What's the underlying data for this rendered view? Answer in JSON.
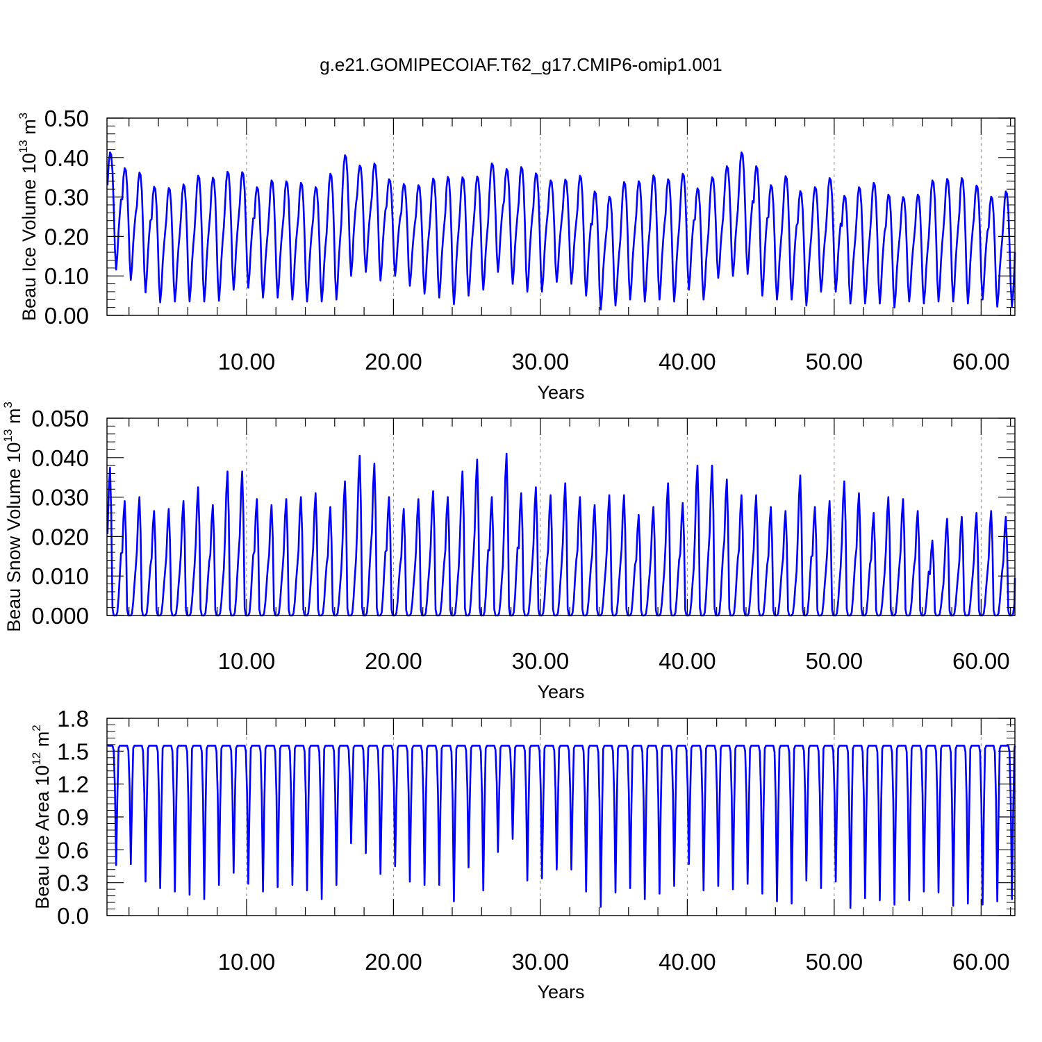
{
  "title": "g.e21.GOMIPECOIAF.T62_g17.CMIP6-omip1.001",
  "style": {
    "line_color": "#0000ff",
    "axis_color": "#000000",
    "grid_color": "#888888"
  },
  "chart_data": [
    {
      "type": "line",
      "xlabel": "Years",
      "ylabel": "Beau Ice Volume 10",
      "ylabel_exp": "13",
      "ylabel_unit": " m",
      "ylabel_unit_exp": "3",
      "xlim": [
        0.5,
        62.3
      ],
      "ylim": [
        0.0,
        0.5
      ],
      "yticks": [
        "0.00",
        "0.10",
        "0.20",
        "0.30",
        "0.40",
        "0.50"
      ],
      "xticks": [
        "10.00",
        "20.00",
        "30.00",
        "40.00",
        "50.00",
        "60.00"
      ],
      "xtick_values": [
        10,
        20,
        30,
        40,
        50,
        60
      ],
      "grid": "vertical dashed at major x ticks",
      "legend": "none",
      "series": [
        {
          "start_year": 0.54,
          "step_years": 0.0833,
          "annual_max": [
            0.413,
            0.373,
            0.362,
            0.326,
            0.323,
            0.332,
            0.354,
            0.349,
            0.364,
            0.363,
            0.325,
            0.342,
            0.34,
            0.336,
            0.325,
            0.359,
            0.406,
            0.38,
            0.385,
            0.345,
            0.333,
            0.33,
            0.347,
            0.351,
            0.35,
            0.352,
            0.385,
            0.371,
            0.376,
            0.36,
            0.342,
            0.344,
            0.354,
            0.314,
            0.301,
            0.338,
            0.34,
            0.355,
            0.345,
            0.359,
            0.322,
            0.35,
            0.378,
            0.413,
            0.378,
            0.33,
            0.353,
            0.315,
            0.325,
            0.348,
            0.303,
            0.325,
            0.336,
            0.306,
            0.3,
            0.306,
            0.342,
            0.346,
            0.348,
            0.329,
            0.301,
            0.314
          ],
          "annual_min": [
            0.116,
            0.09,
            0.058,
            0.033,
            0.035,
            0.035,
            0.035,
            0.037,
            0.065,
            0.07,
            0.045,
            0.045,
            0.04,
            0.035,
            0.035,
            0.04,
            0.1,
            0.11,
            0.088,
            0.1,
            0.075,
            0.055,
            0.045,
            0.028,
            0.05,
            0.065,
            0.11,
            0.08,
            0.06,
            0.06,
            0.085,
            0.08,
            0.05,
            0.015,
            0.025,
            0.04,
            0.035,
            0.04,
            0.035,
            0.065,
            0.04,
            0.095,
            0.1,
            0.105,
            0.05,
            0.04,
            0.04,
            0.025,
            0.06,
            0.06,
            0.03,
            0.03,
            0.03,
            0.02,
            0.035,
            0.03,
            0.035,
            0.035,
            0.03,
            0.04,
            0.022,
            0.022
          ],
          "end_value": 0.16
        }
      ]
    },
    {
      "type": "line",
      "xlabel": "Years",
      "ylabel": "Beau Snow Volume 10",
      "ylabel_exp": "13",
      "ylabel_unit": " m",
      "ylabel_unit_exp": "3",
      "xlim": [
        0.5,
        62.3
      ],
      "ylim": [
        0.0,
        0.05
      ],
      "yticks": [
        "0.000",
        "0.010",
        "0.020",
        "0.030",
        "0.040",
        "0.050"
      ],
      "xticks": [
        "10.00",
        "20.00",
        "30.00",
        "40.00",
        "50.00",
        "60.00"
      ],
      "xtick_values": [
        10,
        20,
        30,
        40,
        50,
        60
      ],
      "grid": "vertical dashed at major x ticks",
      "legend": "none",
      "series": [
        {
          "start_year": 0.54,
          "step_years": 0.0833,
          "annual_max": [
            0.0375,
            0.029,
            0.03,
            0.0265,
            0.027,
            0.029,
            0.0325,
            0.028,
            0.0365,
            0.0365,
            0.0295,
            0.028,
            0.0295,
            0.03,
            0.031,
            0.0275,
            0.034,
            0.0405,
            0.0385,
            0.03,
            0.027,
            0.0295,
            0.0315,
            0.03,
            0.0365,
            0.0395,
            0.03,
            0.041,
            0.031,
            0.0325,
            0.0305,
            0.0335,
            0.03,
            0.028,
            0.0305,
            0.0305,
            0.0255,
            0.0275,
            0.0335,
            0.0285,
            0.038,
            0.038,
            0.0345,
            0.0305,
            0.0305,
            0.0275,
            0.0265,
            0.0355,
            0.0275,
            0.029,
            0.034,
            0.031,
            0.026,
            0.03,
            0.0295,
            0.0265,
            0.019,
            0.0245,
            0.025,
            0.026,
            0.0265,
            0.025
          ],
          "annual_min": [
            0.0,
            0.0,
            0.0,
            0.0,
            0.0,
            0.0,
            0.0,
            0.0,
            0.0,
            0.0,
            0.0,
            0.0,
            0.0,
            0.0,
            0.0,
            0.0,
            0.0,
            0.0,
            0.0,
            0.0,
            0.0,
            0.0,
            0.0,
            0.0,
            0.0,
            0.0,
            0.0,
            0.0,
            0.0,
            0.0,
            0.0,
            0.0,
            0.0,
            0.0,
            0.0,
            0.0,
            0.0,
            0.0,
            0.0,
            0.0,
            0.0,
            0.0,
            0.0,
            0.0,
            0.0,
            0.0,
            0.0,
            0.0,
            0.0,
            0.0,
            0.0,
            0.0,
            0.0,
            0.0,
            0.0,
            0.0,
            0.0,
            0.0,
            0.0,
            0.0,
            0.0,
            0.0
          ],
          "end_value": 0.0095
        }
      ]
    },
    {
      "type": "line",
      "xlabel": "Years",
      "ylabel": "Beau Ice Area 10",
      "ylabel_exp": "12",
      "ylabel_unit": " m",
      "ylabel_unit_exp": "2",
      "xlim": [
        0.5,
        62.3
      ],
      "ylim": [
        0.0,
        1.8
      ],
      "yticks": [
        "0.0",
        "0.3",
        "0.6",
        "0.9",
        "1.2",
        "1.5",
        "1.8"
      ],
      "xticks": [
        "10.00",
        "20.00",
        "30.00",
        "40.00",
        "50.00",
        "60.00"
      ],
      "xtick_values": [
        10,
        20,
        30,
        40,
        50,
        60
      ],
      "grid": "vertical dashed at major x ticks",
      "legend": "none",
      "series": [
        {
          "start_year": 0.54,
          "step_years": 0.0833,
          "annual_max": [
            1.55,
            1.55,
            1.55,
            1.55,
            1.55,
            1.55,
            1.55,
            1.55,
            1.55,
            1.55,
            1.55,
            1.55,
            1.55,
            1.55,
            1.55,
            1.55,
            1.55,
            1.55,
            1.55,
            1.55,
            1.55,
            1.55,
            1.55,
            1.55,
            1.55,
            1.55,
            1.55,
            1.55,
            1.55,
            1.55,
            1.55,
            1.55,
            1.55,
            1.55,
            1.55,
            1.55,
            1.55,
            1.55,
            1.55,
            1.55,
            1.55,
            1.55,
            1.55,
            1.55,
            1.55,
            1.55,
            1.55,
            1.55,
            1.55,
            1.55,
            1.55,
            1.55,
            1.55,
            1.55,
            1.55,
            1.55,
            1.55,
            1.55,
            1.55,
            1.55,
            1.55,
            1.55
          ],
          "annual_min": [
            0.46,
            0.47,
            0.31,
            0.25,
            0.22,
            0.19,
            0.15,
            0.28,
            0.39,
            0.29,
            0.22,
            0.26,
            0.28,
            0.23,
            0.15,
            0.28,
            0.66,
            0.57,
            0.38,
            0.45,
            0.31,
            0.28,
            0.28,
            0.13,
            0.44,
            0.23,
            0.58,
            0.7,
            0.32,
            0.34,
            0.42,
            0.42,
            0.22,
            0.08,
            0.21,
            0.25,
            0.15,
            0.2,
            0.27,
            0.47,
            0.23,
            0.27,
            0.24,
            0.29,
            0.2,
            0.13,
            0.11,
            0.32,
            0.25,
            0.31,
            0.07,
            0.16,
            0.14,
            0.1,
            0.14,
            0.22,
            0.21,
            0.09,
            0.11,
            0.1,
            0.13,
            0.15
          ],
          "end_value": 1.55
        }
      ]
    }
  ]
}
